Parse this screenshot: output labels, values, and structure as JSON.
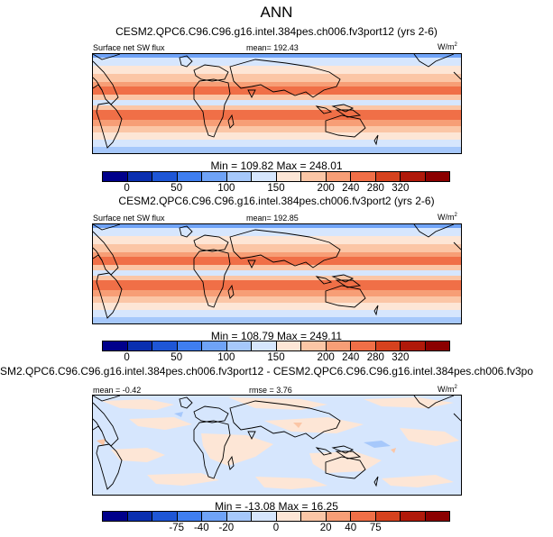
{
  "title": "ANN",
  "panels": [
    {
      "heading": "CESM2.QPC6.C96.C96.g16.intel.384pes.ch006.fv3port12 (yrs 2-6)",
      "left_label": "Surface net SW flux",
      "mid_label": "mean= 192.43",
      "unit": "W/m",
      "unit_sup": "2",
      "stats": "Min = 109.82 Max = 248.01",
      "ticks": [
        "0",
        "50",
        "100",
        "150",
        "200",
        "240",
        "280",
        "320"
      ]
    },
    {
      "heading": "CESM2.QPC6.C96.C96.g16.intel.384pes.ch006.fv3port2 (yrs 2-6)",
      "left_label": "Surface net SW flux",
      "mid_label": "mean= 192.85",
      "unit": "W/m",
      "unit_sup": "2",
      "stats": "Min = 108.79 Max = 249.11",
      "ticks": [
        "0",
        "50",
        "100",
        "150",
        "200",
        "240",
        "280",
        "320"
      ]
    },
    {
      "heading": "SM2.QPC6.C96.C96.g16.intel.384pes.ch006.fv3port12 - CESM2.QPC6.C96.C96.g16.intel.384pes.ch006.fv3po",
      "left_label": "mean =  -0.42",
      "mid_label": "rmse =   3.76",
      "unit": "W/m",
      "unit_sup": "2",
      "stats": "Min = -13.08 Max =  16.25",
      "ticks": [
        "-75",
        "-40",
        "-20",
        "0",
        "20",
        "40",
        "75"
      ]
    }
  ],
  "colors": {
    "palette": [
      "#00008b",
      "#0a2fb0",
      "#1e56d6",
      "#3f7ef0",
      "#6fa3f7",
      "#a6c8fb",
      "#d6e6fd",
      "#fde6d6",
      "#fbc6a6",
      "#f79e76",
      "#f06f47",
      "#d6421e",
      "#b0190a",
      "#8b0000"
    ]
  }
}
